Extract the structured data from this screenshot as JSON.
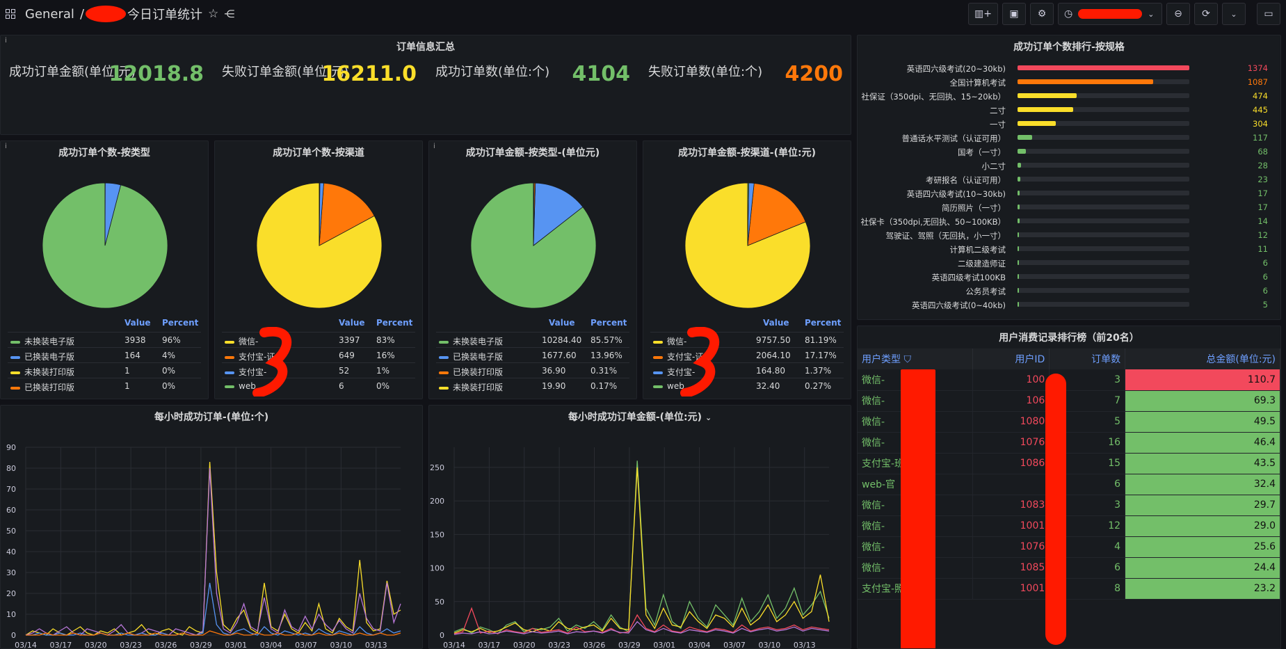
{
  "topbar": {
    "breadcrumb_root": "General",
    "separator": "/",
    "dashboard_title": "今日订单统计"
  },
  "summary": {
    "title": "订单信息汇总",
    "info": "i",
    "stats": [
      {
        "label": "成功订单金额(单位:元)",
        "value": "12018.8",
        "color": "#73bf69"
      },
      {
        "label": "失败订单金额(单位:元)",
        "value": "16211.0",
        "color": "#fade2a"
      },
      {
        "label": "成功订单数(单位:个)",
        "value": "4104",
        "color": "#73bf69"
      },
      {
        "label": "失败订单数(单位:个)",
        "value": "4200",
        "color": "#ff780a"
      }
    ]
  },
  "pies": [
    {
      "title": "成功订单个数-按类型",
      "info": "i",
      "headers": [
        "Value",
        "Percent"
      ],
      "rows": [
        {
          "name": "未换装电子版",
          "value": "3938",
          "percent": "96%",
          "color": "#73bf69",
          "share": 0.96
        },
        {
          "name": "已换装电子版",
          "value": "164",
          "percent": "4%",
          "color": "#5794f2",
          "share": 0.04
        },
        {
          "name": "未换装打印版",
          "value": "1",
          "percent": "0%",
          "color": "#fade2a",
          "share": 0.0002
        },
        {
          "name": "已换装打印版",
          "value": "1",
          "percent": "0%",
          "color": "#ff780a",
          "share": 0.0002
        }
      ]
    },
    {
      "title": "成功订单个数-按渠道",
      "info": "",
      "headers": [
        "Value",
        "Percent"
      ],
      "rows": [
        {
          "name": "微信-",
          "value": "3397",
          "percent": "83%",
          "color": "#fade2a",
          "share": 0.83
        },
        {
          "name": "支付宝-证",
          "value": "649",
          "percent": "16%",
          "color": "#ff780a",
          "share": 0.16
        },
        {
          "name": "支付宝-",
          "value": "52",
          "percent": "1%",
          "color": "#5794f2",
          "share": 0.01
        },
        {
          "name": "web",
          "value": "6",
          "percent": "0%",
          "color": "#73bf69",
          "share": 0.0015
        }
      ]
    },
    {
      "title": "成功订单金额-按类型-(单位元)",
      "info": "i",
      "headers": [
        "Value",
        "Percent"
      ],
      "rows": [
        {
          "name": "未换装电子版",
          "value": "10284.40",
          "percent": "85.57%",
          "color": "#73bf69",
          "share": 0.8557
        },
        {
          "name": "已换装电子版",
          "value": "1677.60",
          "percent": "13.96%",
          "color": "#5794f2",
          "share": 0.1396
        },
        {
          "name": "已换装打印版",
          "value": "36.90",
          "percent": "0.31%",
          "color": "#ff780a",
          "share": 0.0031
        },
        {
          "name": "未换装打印版",
          "value": "19.90",
          "percent": "0.17%",
          "color": "#fade2a",
          "share": 0.0017
        }
      ]
    },
    {
      "title": "成功订单金额-按渠道-(单位:元)",
      "info": "",
      "headers": [
        "Value",
        "Percent"
      ],
      "rows": [
        {
          "name": "微信-",
          "value": "9757.50",
          "percent": "81.19%",
          "color": "#fade2a",
          "share": 0.8119
        },
        {
          "name": "支付宝-证",
          "value": "2064.10",
          "percent": "17.17%",
          "color": "#ff780a",
          "share": 0.1717
        },
        {
          "name": "支付宝-",
          "value": "164.80",
          "percent": "1.37%",
          "color": "#5794f2",
          "share": 0.0137
        },
        {
          "name": "web",
          "value": "32.40",
          "percent": "0.27%",
          "color": "#73bf69",
          "share": 0.0027
        }
      ]
    }
  ],
  "ranking": {
    "title": "成功订单个数排行-按规格",
    "max": 1374,
    "items": [
      {
        "label": "英语四六级考试(20~30kb)",
        "value": 1374,
        "color": "#f2495c"
      },
      {
        "label": "全国计算机考试",
        "value": 1087,
        "color": "#ff780a"
      },
      {
        "label": "社保证（350dpi、无回执、15~20kb）",
        "value": 474,
        "color": "#fade2a"
      },
      {
        "label": "二寸",
        "value": 445,
        "color": "#fade2a"
      },
      {
        "label": "一寸",
        "value": 304,
        "color": "#fade2a"
      },
      {
        "label": "普通话水平测试（认证可用）",
        "value": 117,
        "color": "#73bf69"
      },
      {
        "label": "国考（一寸）",
        "value": 68,
        "color": "#73bf69"
      },
      {
        "label": "小二寸",
        "value": 28,
        "color": "#73bf69"
      },
      {
        "label": "考研报名（认证可用）",
        "value": 23,
        "color": "#73bf69"
      },
      {
        "label": "英语四六级考试(10~30kb)",
        "value": 17,
        "color": "#73bf69"
      },
      {
        "label": "简历照片（一寸）",
        "value": 17,
        "color": "#73bf69"
      },
      {
        "label": "社保卡（350dpi,无回执、50~100KB）",
        "value": 14,
        "color": "#73bf69"
      },
      {
        "label": "驾驶证、驾照（无回执，小一寸）",
        "value": 12,
        "color": "#73bf69"
      },
      {
        "label": "计算机二级考试",
        "value": 11,
        "color": "#73bf69"
      },
      {
        "label": "二级建造师证",
        "value": 6,
        "color": "#73bf69"
      },
      {
        "label": "英语四级考试100KB",
        "value": 6,
        "color": "#73bf69"
      },
      {
        "label": "公务员考试",
        "value": 6,
        "color": "#73bf69"
      },
      {
        "label": "英语四六级考试(0~40kb)",
        "value": 5,
        "color": "#73bf69"
      }
    ]
  },
  "user_table": {
    "title": "用户消费记录排行榜（前20名）",
    "columns": [
      "用户类型",
      "用户ID",
      "订单数",
      "总金额(单位:元)"
    ],
    "rows": [
      {
        "type": "微信-",
        "uid": "100",
        "count": "3",
        "amount": "110.7",
        "hot": true
      },
      {
        "type": "微信-",
        "uid": "106",
        "count": "7",
        "amount": "69.3",
        "hot": false
      },
      {
        "type": "微信-",
        "uid": "1080",
        "count": "5",
        "amount": "49.5",
        "hot": false
      },
      {
        "type": "微信-",
        "uid": "1076",
        "count": "16",
        "amount": "46.4",
        "hot": false
      },
      {
        "type": "支付宝-班",
        "uid": "1086",
        "count": "15",
        "amount": "43.5",
        "hot": false
      },
      {
        "type": "web-官",
        "uid": "",
        "count": "6",
        "amount": "32.4",
        "hot": false
      },
      {
        "type": "微信-",
        "uid": "1083",
        "count": "3",
        "amount": "29.7",
        "hot": false
      },
      {
        "type": "微信-",
        "uid": "1001",
        "count": "12",
        "amount": "29.0",
        "hot": false
      },
      {
        "type": "微信-",
        "uid": "1076",
        "count": "4",
        "amount": "25.6",
        "hot": false
      },
      {
        "type": "微信-",
        "uid": "1085",
        "count": "6",
        "amount": "24.4",
        "hot": false
      },
      {
        "type": "支付宝-照",
        "uid": "1001",
        "count": "8",
        "amount": "23.2",
        "hot": false
      }
    ]
  },
  "chart_data": [
    {
      "type": "line",
      "title": "每小时成功订单-(单位:个)",
      "x_ticks": [
        "03/14",
        "03/17",
        "03/20",
        "03/23",
        "03/26",
        "03/29",
        "03/01",
        "03/04",
        "03/07",
        "03/10",
        "03/13"
      ],
      "ylim": [
        0,
        90
      ],
      "y_ticks": [
        0,
        10,
        20,
        30,
        40,
        50,
        60,
        70,
        80,
        90
      ],
      "series": [
        {
          "color": "#fade2a",
          "values": [
            0,
            2,
            1,
            0,
            3,
            1,
            0,
            2,
            4,
            1,
            0,
            2,
            1,
            3,
            0,
            1,
            2,
            5,
            1,
            0,
            2,
            3,
            1,
            0,
            4,
            2,
            1,
            83,
            30,
            5,
            2,
            8,
            12,
            3,
            1,
            25,
            4,
            2,
            10,
            3,
            1,
            6,
            2,
            15,
            3,
            1,
            8,
            4,
            2,
            36,
            6,
            2,
            3,
            26,
            10,
            12
          ]
        },
        {
          "color": "#b877d9",
          "values": [
            0,
            1,
            3,
            1,
            0,
            2,
            4,
            1,
            0,
            3,
            2,
            1,
            0,
            2,
            5,
            1,
            0,
            1,
            3,
            2,
            1,
            0,
            3,
            2,
            1,
            0,
            2,
            80,
            20,
            3,
            1,
            6,
            15,
            4,
            2,
            18,
            3,
            1,
            12,
            4,
            2,
            9,
            3,
            10,
            5,
            2,
            7,
            3,
            1,
            20,
            8,
            3,
            2,
            25,
            6,
            15
          ]
        },
        {
          "color": "#5794f2",
          "values": [
            0,
            0,
            1,
            0,
            0,
            1,
            0,
            0,
            1,
            0,
            0,
            1,
            0,
            0,
            1,
            0,
            0,
            1,
            0,
            0,
            1,
            0,
            0,
            1,
            0,
            0,
            1,
            25,
            5,
            1,
            0,
            2,
            3,
            1,
            0,
            4,
            1,
            0,
            2,
            1,
            0,
            1,
            0,
            3,
            1,
            0,
            2,
            1,
            0,
            4,
            1,
            0,
            1,
            3,
            1,
            2
          ]
        },
        {
          "color": "#ff780a",
          "values": [
            0,
            0,
            0,
            1,
            0,
            0,
            0,
            1,
            0,
            0,
            0,
            1,
            0,
            0,
            0,
            1,
            0,
            0,
            0,
            1,
            0,
            0,
            0,
            1,
            0,
            0,
            0,
            2,
            1,
            0,
            0,
            1,
            0,
            0,
            1,
            0,
            0,
            1,
            0,
            0,
            1,
            0,
            0,
            1,
            0,
            0,
            1,
            0,
            0,
            1,
            0,
            0,
            1,
            0,
            0,
            1
          ]
        }
      ]
    },
    {
      "type": "line",
      "title": "每小时成功订单金额-(单位:元)",
      "x_ticks": [
        "03/14",
        "03/17",
        "03/20",
        "03/23",
        "03/26",
        "03/29",
        "03/01",
        "03/04",
        "03/07",
        "03/10",
        "03/13"
      ],
      "ylim": [
        0,
        280
      ],
      "y_ticks": [
        0,
        50,
        100,
        150,
        200,
        250
      ],
      "series": [
        {
          "color": "#73bf69",
          "values": [
            5,
            10,
            3,
            12,
            8,
            2,
            15,
            20,
            5,
            10,
            8,
            12,
            25,
            6,
            15,
            10,
            20,
            8,
            30,
            12,
            5,
            260,
            40,
            15,
            60,
            20,
            10,
            50,
            25,
            12,
            45,
            30,
            15,
            55,
            20,
            35,
            60,
            25,
            40,
            70,
            30,
            45,
            65,
            25
          ]
        },
        {
          "color": "#fade2a",
          "values": [
            3,
            8,
            5,
            10,
            4,
            6,
            12,
            18,
            8,
            5,
            10,
            6,
            20,
            10,
            8,
            12,
            15,
            6,
            25,
            10,
            8,
            250,
            30,
            10,
            40,
            15,
            12,
            35,
            20,
            10,
            30,
            25,
            12,
            40,
            15,
            25,
            45,
            20,
            30,
            50,
            25,
            35,
            90,
            20
          ]
        },
        {
          "color": "#f2495c",
          "values": [
            2,
            5,
            40,
            3,
            6,
            2,
            8,
            5,
            3,
            10,
            4,
            6,
            8,
            3,
            12,
            5,
            6,
            4,
            10,
            3,
            5,
            30,
            10,
            5,
            15,
            6,
            4,
            12,
            8,
            5,
            10,
            8,
            4,
            15,
            6,
            10,
            12,
            8,
            10,
            15,
            8,
            12,
            10,
            8
          ]
        },
        {
          "color": "#b877d9",
          "values": [
            1,
            3,
            2,
            5,
            2,
            3,
            6,
            4,
            2,
            5,
            3,
            4,
            6,
            2,
            5,
            4,
            6,
            3,
            8,
            4,
            3,
            20,
            8,
            4,
            10,
            5,
            3,
            8,
            6,
            4,
            8,
            6,
            3,
            10,
            5,
            8,
            10,
            6,
            8,
            12,
            6,
            10,
            8,
            6
          ]
        }
      ]
    }
  ]
}
